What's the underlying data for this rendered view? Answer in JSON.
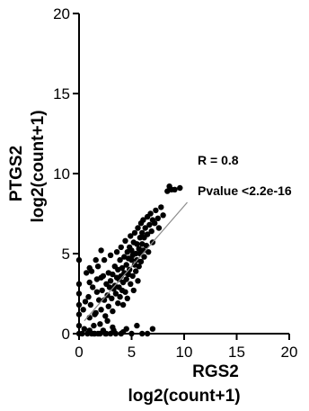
{
  "chart_data": {
    "type": "scatter",
    "title": "",
    "xlabel": [
      "RGS2",
      "log2(count+1)"
    ],
    "ylabel": [
      "PTGS2",
      "log2(count+1)"
    ],
    "xlim": [
      0,
      20
    ],
    "ylim": [
      0,
      20
    ],
    "xticks": [
      "0",
      "5",
      "10",
      "15",
      "20"
    ],
    "yticks": [
      "0",
      "5",
      "10",
      "15",
      "20"
    ],
    "annotations": [
      "R = 0.8",
      "Pvalue <2.2e-16"
    ],
    "regression_line": {
      "x": [
        0.5,
        10.3
      ],
      "y": [
        0.8,
        8.2
      ]
    },
    "grid": false,
    "legend": "none",
    "marker_color": "#000000",
    "points": [
      [
        0,
        0
      ],
      [
        0,
        0.5
      ],
      [
        0,
        1.2
      ],
      [
        0,
        1.8
      ],
      [
        0,
        2.5
      ],
      [
        0,
        3.1
      ],
      [
        0,
        4.6
      ],
      [
        0.3,
        0
      ],
      [
        0.5,
        0.3
      ],
      [
        0.6,
        2
      ],
      [
        0.8,
        0
      ],
      [
        1,
        0.2
      ],
      [
        1,
        1
      ],
      [
        1,
        3.2
      ],
      [
        1.2,
        0
      ],
      [
        1.4,
        0.5
      ],
      [
        1.5,
        0
      ],
      [
        1.6,
        1.3
      ],
      [
        1.7,
        2.6
      ],
      [
        1.8,
        0
      ],
      [
        2,
        0
      ],
      [
        2,
        0.6
      ],
      [
        2.1,
        3.5
      ],
      [
        2.3,
        0.2
      ],
      [
        2.5,
        0
      ],
      [
        2.7,
        0.8
      ],
      [
        3,
        0
      ],
      [
        3.2,
        0.4
      ],
      [
        3.5,
        0
      ],
      [
        4,
        0
      ],
      [
        4.5,
        0.3
      ],
      [
        5,
        0
      ],
      [
        5.5,
        0.5
      ],
      [
        6,
        0
      ],
      [
        0.9,
        2.3
      ],
      [
        1.1,
        1.8
      ],
      [
        1.3,
        2.9
      ],
      [
        1.2,
        3.9
      ],
      [
        1.5,
        1.2
      ],
      [
        1.7,
        3.4
      ],
      [
        1.9,
        2.1
      ],
      [
        1.8,
        4.2
      ],
      [
        2.1,
        1.5
      ],
      [
        2.2,
        2.7
      ],
      [
        2.3,
        3.6
      ],
      [
        2.4,
        2.1
      ],
      [
        2.4,
        4.6
      ],
      [
        2.5,
        1.1
      ],
      [
        2.6,
        3.1
      ],
      [
        2.7,
        2.4
      ],
      [
        2.8,
        3.8
      ],
      [
        2.8,
        1.7
      ],
      [
        2.9,
        2.9
      ],
      [
        3,
        3.3
      ],
      [
        3,
        4.9
      ],
      [
        3.1,
        2.2
      ],
      [
        3.2,
        3.7
      ],
      [
        3.2,
        1.4
      ],
      [
        3.3,
        2.8
      ],
      [
        3.4,
        4.2
      ],
      [
        3.4,
        3
      ],
      [
        3.5,
        2.5
      ],
      [
        3.6,
        3.5
      ],
      [
        3.6,
        5.1
      ],
      [
        3.7,
        1.9
      ],
      [
        3.7,
        4
      ],
      [
        3.8,
        2.9
      ],
      [
        3.8,
        3.4
      ],
      [
        3.9,
        4.6
      ],
      [
        3.9,
        2.3
      ],
      [
        4,
        3.6
      ],
      [
        4,
        5.4
      ],
      [
        4.1,
        2.7
      ],
      [
        4.1,
        4.1
      ],
      [
        4.2,
        3.2
      ],
      [
        4.2,
        1.8
      ],
      [
        4.3,
        4.8
      ],
      [
        4.3,
        3.8
      ],
      [
        4.4,
        2.6
      ],
      [
        4.4,
        5.8
      ],
      [
        4.5,
        4.3
      ],
      [
        4.5,
        3.4
      ],
      [
        4.6,
        5.1
      ],
      [
        4.6,
        2.2
      ],
      [
        4.7,
        4.7
      ],
      [
        4.7,
        3.7
      ],
      [
        4.8,
        5.4
      ],
      [
        4.8,
        4
      ],
      [
        4.9,
        3.1
      ],
      [
        4.9,
        6.1
      ],
      [
        5,
        4.6
      ],
      [
        5,
        5.2
      ],
      [
        5.1,
        3.6
      ],
      [
        5.1,
        4.9
      ],
      [
        5.2,
        5.7
      ],
      [
        5.2,
        2.7
      ],
      [
        5.3,
        4.3
      ],
      [
        5.3,
        6.3
      ],
      [
        5.4,
        5
      ],
      [
        5.4,
        3.9
      ],
      [
        5.5,
        5.6
      ],
      [
        5.5,
        4.6
      ],
      [
        5.6,
        6.6
      ],
      [
        5.6,
        3.3
      ],
      [
        5.7,
        5.3
      ],
      [
        5.7,
        4.2
      ],
      [
        5.8,
        6
      ],
      [
        5.8,
        5
      ],
      [
        5.9,
        6.9
      ],
      [
        5.9,
        4.5
      ],
      [
        6,
        5.6
      ],
      [
        6,
        6.3
      ],
      [
        6.1,
        5.2
      ],
      [
        6.1,
        7.1
      ],
      [
        6.2,
        6
      ],
      [
        6.2,
        4.8
      ],
      [
        6.3,
        6.6
      ],
      [
        6.4,
        5.5
      ],
      [
        6.5,
        7.3
      ],
      [
        6.5,
        6.2
      ],
      [
        6.6,
        5.1
      ],
      [
        6.7,
        6.8
      ],
      [
        6.8,
        7.5
      ],
      [
        6.9,
        6.4
      ],
      [
        7,
        7.1
      ],
      [
        7,
        5.7
      ],
      [
        7.2,
        6.9
      ],
      [
        7.3,
        7.7
      ],
      [
        7.5,
        7.2
      ],
      [
        7.6,
        6.6
      ],
      [
        7.8,
        7.9
      ],
      [
        8,
        7.4
      ],
      [
        8.4,
        8.9
      ],
      [
        8.6,
        9.2
      ],
      [
        8.8,
        9
      ],
      [
        9.1,
        9
      ],
      [
        9.6,
        9.1
      ],
      [
        1,
        4.1
      ],
      [
        1.6,
        4.6
      ],
      [
        2.1,
        5.2
      ],
      [
        0.4,
        1.5
      ],
      [
        0.7,
        3.8
      ],
      [
        1.4,
        0
      ],
      [
        2.6,
        0
      ],
      [
        3.3,
        0.2
      ],
      [
        4.2,
        0.1
      ],
      [
        6.5,
        0
      ],
      [
        7,
        0.3
      ]
    ]
  }
}
